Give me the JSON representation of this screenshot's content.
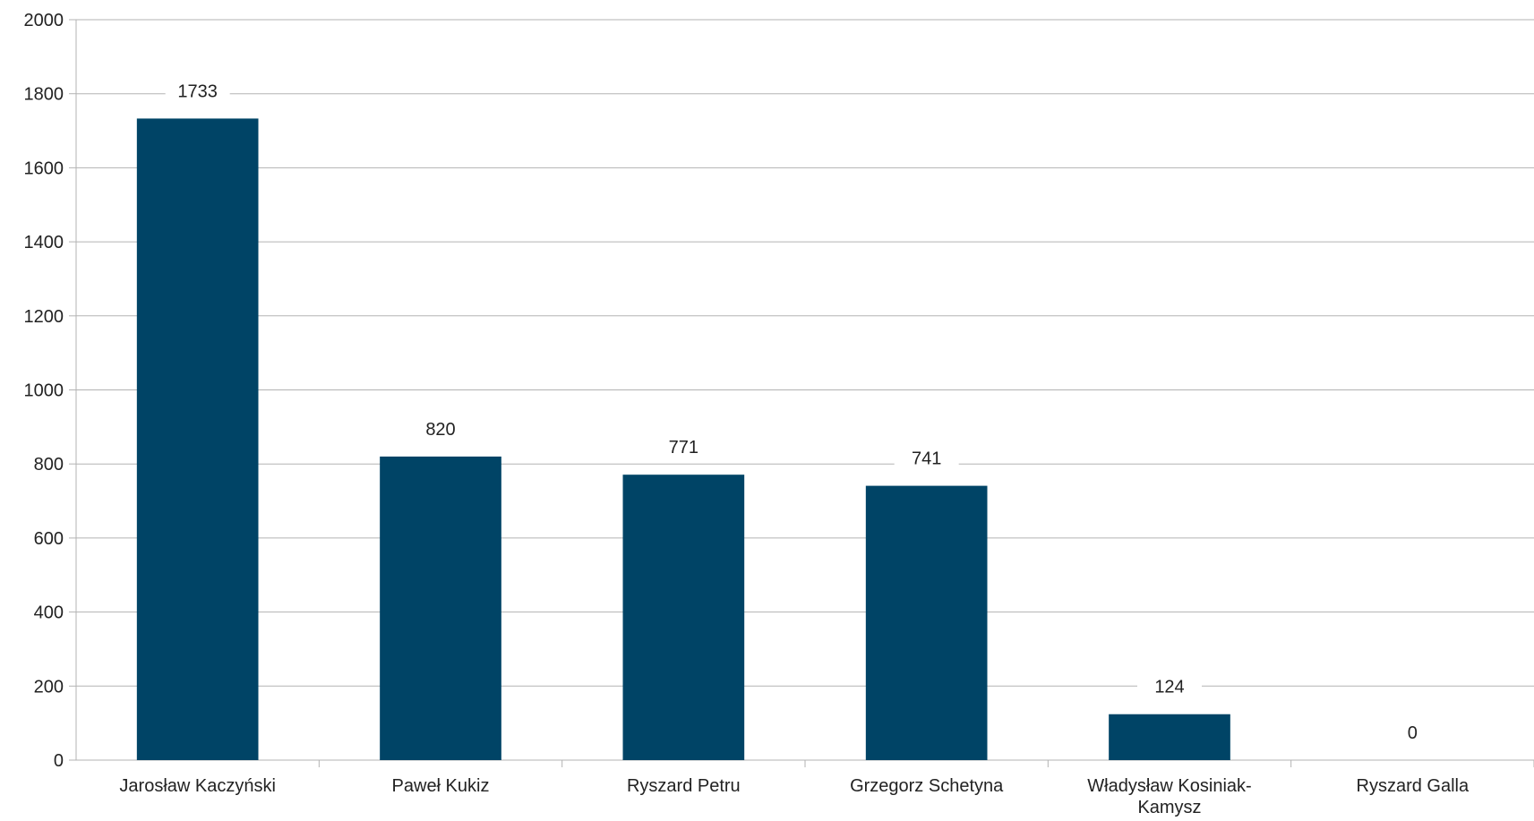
{
  "chart_data": {
    "type": "bar",
    "categories": [
      "Jarosław Kaczyński",
      "Paweł Kukiz",
      "Ryszard Petru",
      "Grzegorz Schetyna",
      "Władysław Kosiniak-Kamysz",
      "Ryszard Galla"
    ],
    "values": [
      1733,
      820,
      771,
      741,
      124,
      0
    ],
    "data_labels": [
      "1733",
      "820",
      "771",
      "741",
      "124",
      "0"
    ],
    "title": "",
    "xlabel": "",
    "ylabel": "",
    "ylim": [
      0,
      2000
    ],
    "yticks": [
      0,
      200,
      400,
      600,
      800,
      1000,
      1200,
      1400,
      1600,
      1800,
      2000
    ],
    "ytick_labels": [
      "0",
      "200",
      "400",
      "600",
      "800",
      "1000",
      "1200",
      "1400",
      "1600",
      "1800",
      "2000"
    ],
    "grid": true,
    "legend": "none",
    "colors": {
      "bar": "#004466",
      "grid": "#b3b3b3",
      "axis": "#b3b3b3",
      "text": "#222222"
    }
  }
}
